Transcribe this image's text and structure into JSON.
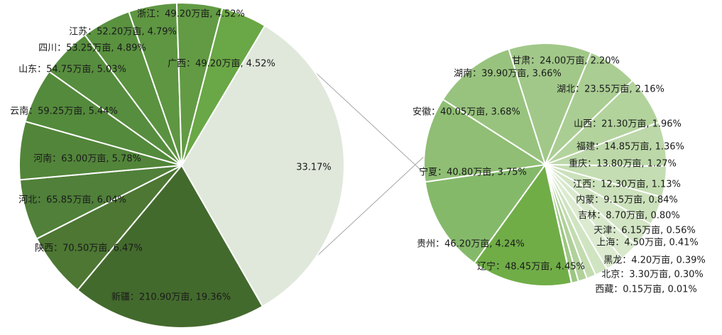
{
  "chart_data": [
    {
      "type": "pie",
      "title": "",
      "slices": [
        {
          "label": "新疆：210.90万亩, 19.36%",
          "value": 19.36,
          "color": "#436a2d"
        },
        {
          "label": "陕西：70.50万亩, 6.47%",
          "value": 6.47,
          "color": "#4d7733"
        },
        {
          "label": "河北：65.85万亩, 6.04%",
          "value": 6.04,
          "color": "#50803a"
        },
        {
          "label": "河南：63.00万亩, 5.78%",
          "value": 5.78,
          "color": "#52853a"
        },
        {
          "label": "云南：59.25万亩, 5.44%",
          "value": 5.44,
          "color": "#548a3c"
        },
        {
          "label": "山东：54.75万亩, 5.03%",
          "value": 5.03,
          "color": "#578d3e"
        },
        {
          "label": "四川：53.25万亩, 4.89%",
          "value": 4.89,
          "color": "#5a9240"
        },
        {
          "label": "江苏：52.20万亩, 4.79%",
          "value": 4.79,
          "color": "#5e9642"
        },
        {
          "label": "浙江：49.20万亩, 4.52%",
          "value": 4.52,
          "color": "#629b44"
        },
        {
          "label": "广西：49.20万亩, 4.52%",
          "value": 4.52,
          "color": "#6aa746"
        },
        {
          "label": "33.17%",
          "value": 33.17,
          "color": "#e0e8dc"
        }
      ]
    },
    {
      "type": "pie",
      "title": "",
      "slices": [
        {
          "label": "辽宁：48.45万亩, 4.45%",
          "value": 4.45,
          "color": "#70ad47"
        },
        {
          "label": "贵州：46.20万亩, 4.24%",
          "value": 4.24,
          "color": "#85b96a"
        },
        {
          "label": "宁夏：40.80万亩, 3.75%",
          "value": 3.75,
          "color": "#8fbe74"
        },
        {
          "label": "安徽：40.05万亩, 3.68%",
          "value": 3.68,
          "color": "#98c37e"
        },
        {
          "label": "湖南：39.90万亩, 3.66%",
          "value": 3.66,
          "color": "#a1c889"
        },
        {
          "label": "甘肃：24.00万亩, 2.20%",
          "value": 2.2,
          "color": "#aacd93"
        },
        {
          "label": "湖北：23.55万亩, 2.16%",
          "value": 2.16,
          "color": "#b3d39d"
        },
        {
          "label": "山西：21.30万亩, 1.96%",
          "value": 1.96,
          "color": "#bcd8a8"
        },
        {
          "label": "福建：14.85万亩, 1.36%",
          "value": 1.36,
          "color": "#c4ddb2"
        },
        {
          "label": "重庆：13.80万亩, 1.27%",
          "value": 1.27,
          "color": "#cbe1bb"
        },
        {
          "label": "江西：12.30万亩, 1.13%",
          "value": 1.13,
          "color": "#d2e5c4"
        },
        {
          "label": "内蒙：9.15万亩, 0.84%",
          "value": 0.84,
          "color": "#d8e9cb"
        },
        {
          "label": "吉林：8.70万亩, 0.80%",
          "value": 0.8,
          "color": "#dcebd0"
        },
        {
          "label": "天津：6.15万亩, 0.56%",
          "value": 0.56,
          "color": "#d0e4c2"
        },
        {
          "label": "上海：4.50万亩, 0.41%",
          "value": 0.41,
          "color": "#c2dcb0"
        },
        {
          "label": "黑龙：4.20万亩, 0.39%",
          "value": 0.39,
          "color": "#b0d19a"
        },
        {
          "label": "北京：3.30万亩, 0.30%",
          "value": 0.3,
          "color": "#9bc681"
        },
        {
          "label": "西藏：0.15万亩, 0.01%",
          "value": 0.01,
          "color": "#86ba68"
        }
      ]
    }
  ]
}
